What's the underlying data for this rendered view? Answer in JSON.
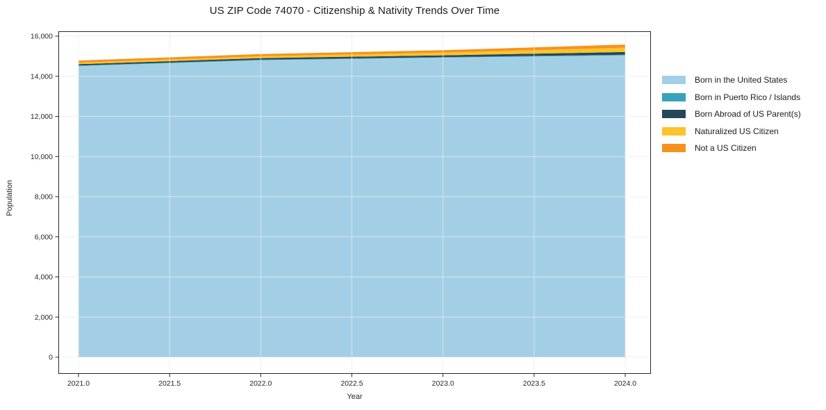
{
  "page": {
    "title": "US ZIP Code 74070 - Citizenship & Nativity Trends Over Time"
  },
  "chart_data": {
    "type": "area",
    "stacked": true,
    "title": "US ZIP Code 74070 - Citizenship & Nativity Trends Over Time",
    "xlabel": "Year",
    "ylabel": "Population",
    "x": [
      2021,
      2022,
      2023,
      2024
    ],
    "series": [
      {
        "name": "Born in the United States",
        "color": "#a3cfe6",
        "values": [
          14510,
          14800,
          14930,
          15045
        ]
      },
      {
        "name": "Born in Puerto Rico / Islands",
        "color": "#37a2bd",
        "values": [
          25,
          25,
          25,
          30
        ]
      },
      {
        "name": "Born Abroad of US Parent(s)",
        "color": "#24485a",
        "values": [
          70,
          80,
          90,
          135
        ]
      },
      {
        "name": "Naturalized US Citizen",
        "color": "#fbc32c",
        "values": [
          75,
          90,
          135,
          215
        ]
      },
      {
        "name": "Not a US Citizen",
        "color": "#f6931e",
        "values": [
          105,
          110,
          120,
          155
        ]
      }
    ],
    "totals": [
      14785,
      15105,
      15300,
      15580
    ],
    "xticks": [
      2021.0,
      2021.5,
      2022.0,
      2022.5,
      2023.0,
      2023.5,
      2024.0
    ],
    "xtick_labels": [
      "2021.0",
      "2021.5",
      "2022.0",
      "2022.5",
      "2023.0",
      "2023.5",
      "2024.0"
    ],
    "yticks": [
      0,
      2000,
      4000,
      6000,
      8000,
      10000,
      12000,
      14000,
      16000
    ],
    "ytick_labels": [
      "0",
      "2,000",
      "4,000",
      "6,000",
      "8,000",
      "10,000",
      "12,000",
      "14,000",
      "16,000"
    ],
    "xlim": [
      2021,
      2024
    ],
    "ylim": [
      0,
      16000
    ],
    "grid": true,
    "legend_position": "right-outside",
    "colors": {
      "grid": "#ebebeb",
      "spine": "#262626",
      "tick_text": "#262626",
      "background": "#ffffff"
    }
  }
}
